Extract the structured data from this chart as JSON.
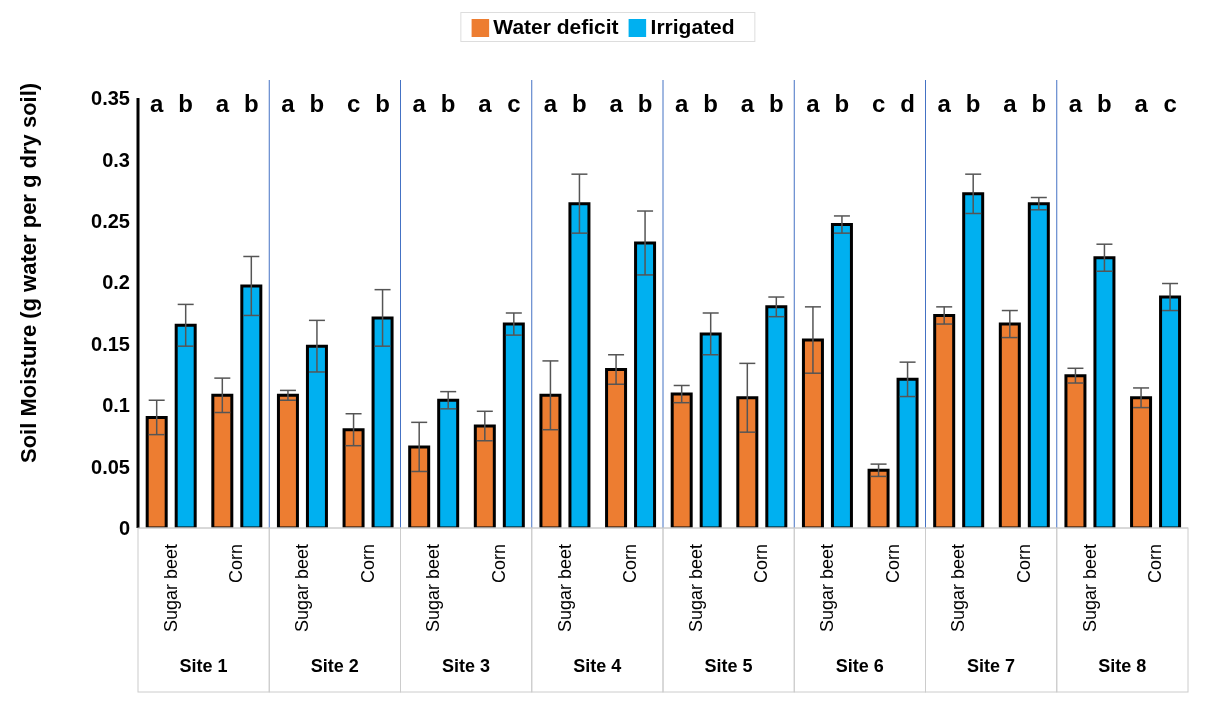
{
  "chart_data": {
    "type": "bar",
    "ylabel": "Soil Moisture (g water per g dry soil)",
    "categories": [
      "Sugar beet",
      "Corn",
      "Sugar beet",
      "Corn",
      "Sugar beet",
      "Corn",
      "Sugar beet",
      "Corn",
      "Sugar beet",
      "Corn",
      "Sugar beet",
      "Corn",
      "Sugar beet",
      "Corn",
      "Sugar beet",
      "Corn"
    ],
    "series": [
      {
        "name": "Water deficit",
        "color": "#ed7d31",
        "values": [
          0.09,
          0.108,
          0.108,
          0.08,
          0.066,
          0.083,
          0.108,
          0.129,
          0.109,
          0.106,
          0.153,
          0.047,
          0.173,
          0.166,
          0.124,
          0.106
        ],
        "errors": [
          0.014,
          0.014,
          0.004,
          0.013,
          0.02,
          0.012,
          0.028,
          0.012,
          0.007,
          0.028,
          0.027,
          0.005,
          0.007,
          0.011,
          0.006,
          0.008
        ]
      },
      {
        "name": "Irrigated",
        "color": "#00b0f0",
        "values": [
          0.165,
          0.197,
          0.148,
          0.171,
          0.104,
          0.166,
          0.264,
          0.232,
          0.158,
          0.18,
          0.247,
          0.121,
          0.272,
          0.264,
          0.22,
          0.188
        ],
        "errors": [
          0.017,
          0.024,
          0.021,
          0.023,
          0.007,
          0.009,
          0.024,
          0.026,
          0.017,
          0.008,
          0.007,
          0.014,
          0.016,
          0.005,
          0.011,
          0.011
        ]
      }
    ],
    "annotations": [
      "a",
      "b",
      "a",
      "b",
      "a",
      "b",
      "c",
      "b",
      "a",
      "b",
      "a",
      "c",
      "a",
      "b",
      "a",
      "b",
      "a",
      "b",
      "a",
      "b",
      "a",
      "b",
      "c",
      "d",
      "a",
      "b",
      "a",
      "b",
      "a",
      "b",
      "a",
      "c",
      "Site 1",
      "Site 2",
      "Site 3",
      "Site 4",
      "Site 5",
      "Site 6",
      "Site 7",
      "Site 8"
    ],
    "ylim": [
      0,
      0.35
    ],
    "yticks": [
      0,
      0.05,
      0.1,
      0.15,
      0.2,
      0.25,
      0.3,
      0.35
    ],
    "grid": false,
    "legend": "top"
  }
}
